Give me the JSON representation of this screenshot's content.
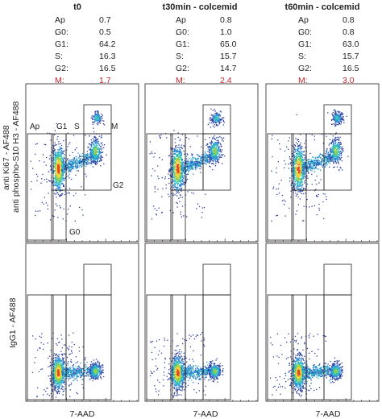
{
  "columns": [
    {
      "title": "t0",
      "stats": [
        {
          "label": "Ap :",
          "value": "0.7"
        },
        {
          "label": "G0:",
          "value": "0.5"
        },
        {
          "label": "G1:",
          "value": "64.2"
        },
        {
          "label": "S:",
          "value": "16.3"
        },
        {
          "label": "G2:",
          "value": "16.5"
        },
        {
          "label": "M:",
          "value": "1.7"
        }
      ]
    },
    {
      "title": "t30min - colcemid",
      "stats": [
        {
          "label": "Ap :",
          "value": "0.8"
        },
        {
          "label": "G0:",
          "value": "1.0"
        },
        {
          "label": "G1:",
          "value": "65.0"
        },
        {
          "label": "S:",
          "value": "15.7"
        },
        {
          "label": "G2:",
          "value": "14.7"
        },
        {
          "label": "M:",
          "value": "2.4"
        }
      ]
    },
    {
      "title": "t60min - colcemid",
      "stats": [
        {
          "label": "Ap :",
          "value": "0.8"
        },
        {
          "label": "G0:",
          "value": "0.8"
        },
        {
          "label": "G1:",
          "value": "63.0"
        },
        {
          "label": "S:",
          "value": "15.7"
        },
        {
          "label": "G2:",
          "value": "16.5"
        },
        {
          "label": "M:",
          "value": "3.0"
        }
      ]
    }
  ],
  "highlight_color": "#c1272d",
  "y_labels": {
    "top_line1": "anti Ki67 - AF488",
    "top_line2": "anti phospho-S10 H3 - AF488",
    "bottom": "IgG1 - AF488"
  },
  "x_label": "7-AAD",
  "gate_labels": {
    "ap": "Ap",
    "g1": "G1",
    "s": "S",
    "m": "M",
    "g2": "G2",
    "g0": "G0"
  },
  "chart_data": {
    "type": "scatter",
    "description_free": true,
    "panels": [
      {
        "row": "top",
        "column": "t0",
        "populations": [
          "G1",
          "S",
          "G2",
          "M"
        ]
      },
      {
        "row": "top",
        "column": "t30min - colcemid",
        "populations": [
          "G1",
          "S",
          "G2",
          "M"
        ]
      },
      {
        "row": "top",
        "column": "t60min - colcemid",
        "populations": [
          "G1",
          "S",
          "G2",
          "M"
        ]
      },
      {
        "row": "bottom",
        "column": "t0",
        "populations": [
          "G1",
          "S",
          "G2"
        ]
      },
      {
        "row": "bottom",
        "column": "t30min - colcemid",
        "populations": [
          "G1",
          "S",
          "G2"
        ]
      },
      {
        "row": "bottom",
        "column": "t60min - colcemid",
        "populations": [
          "G1",
          "S",
          "G2"
        ]
      }
    ],
    "xlabel": "7-AAD",
    "grid": false,
    "density_colors": [
      "#2b3f9e",
      "#2a8fd6",
      "#2fc0b9",
      "#8fd14f",
      "#f2d23a",
      "#e8441e"
    ]
  }
}
